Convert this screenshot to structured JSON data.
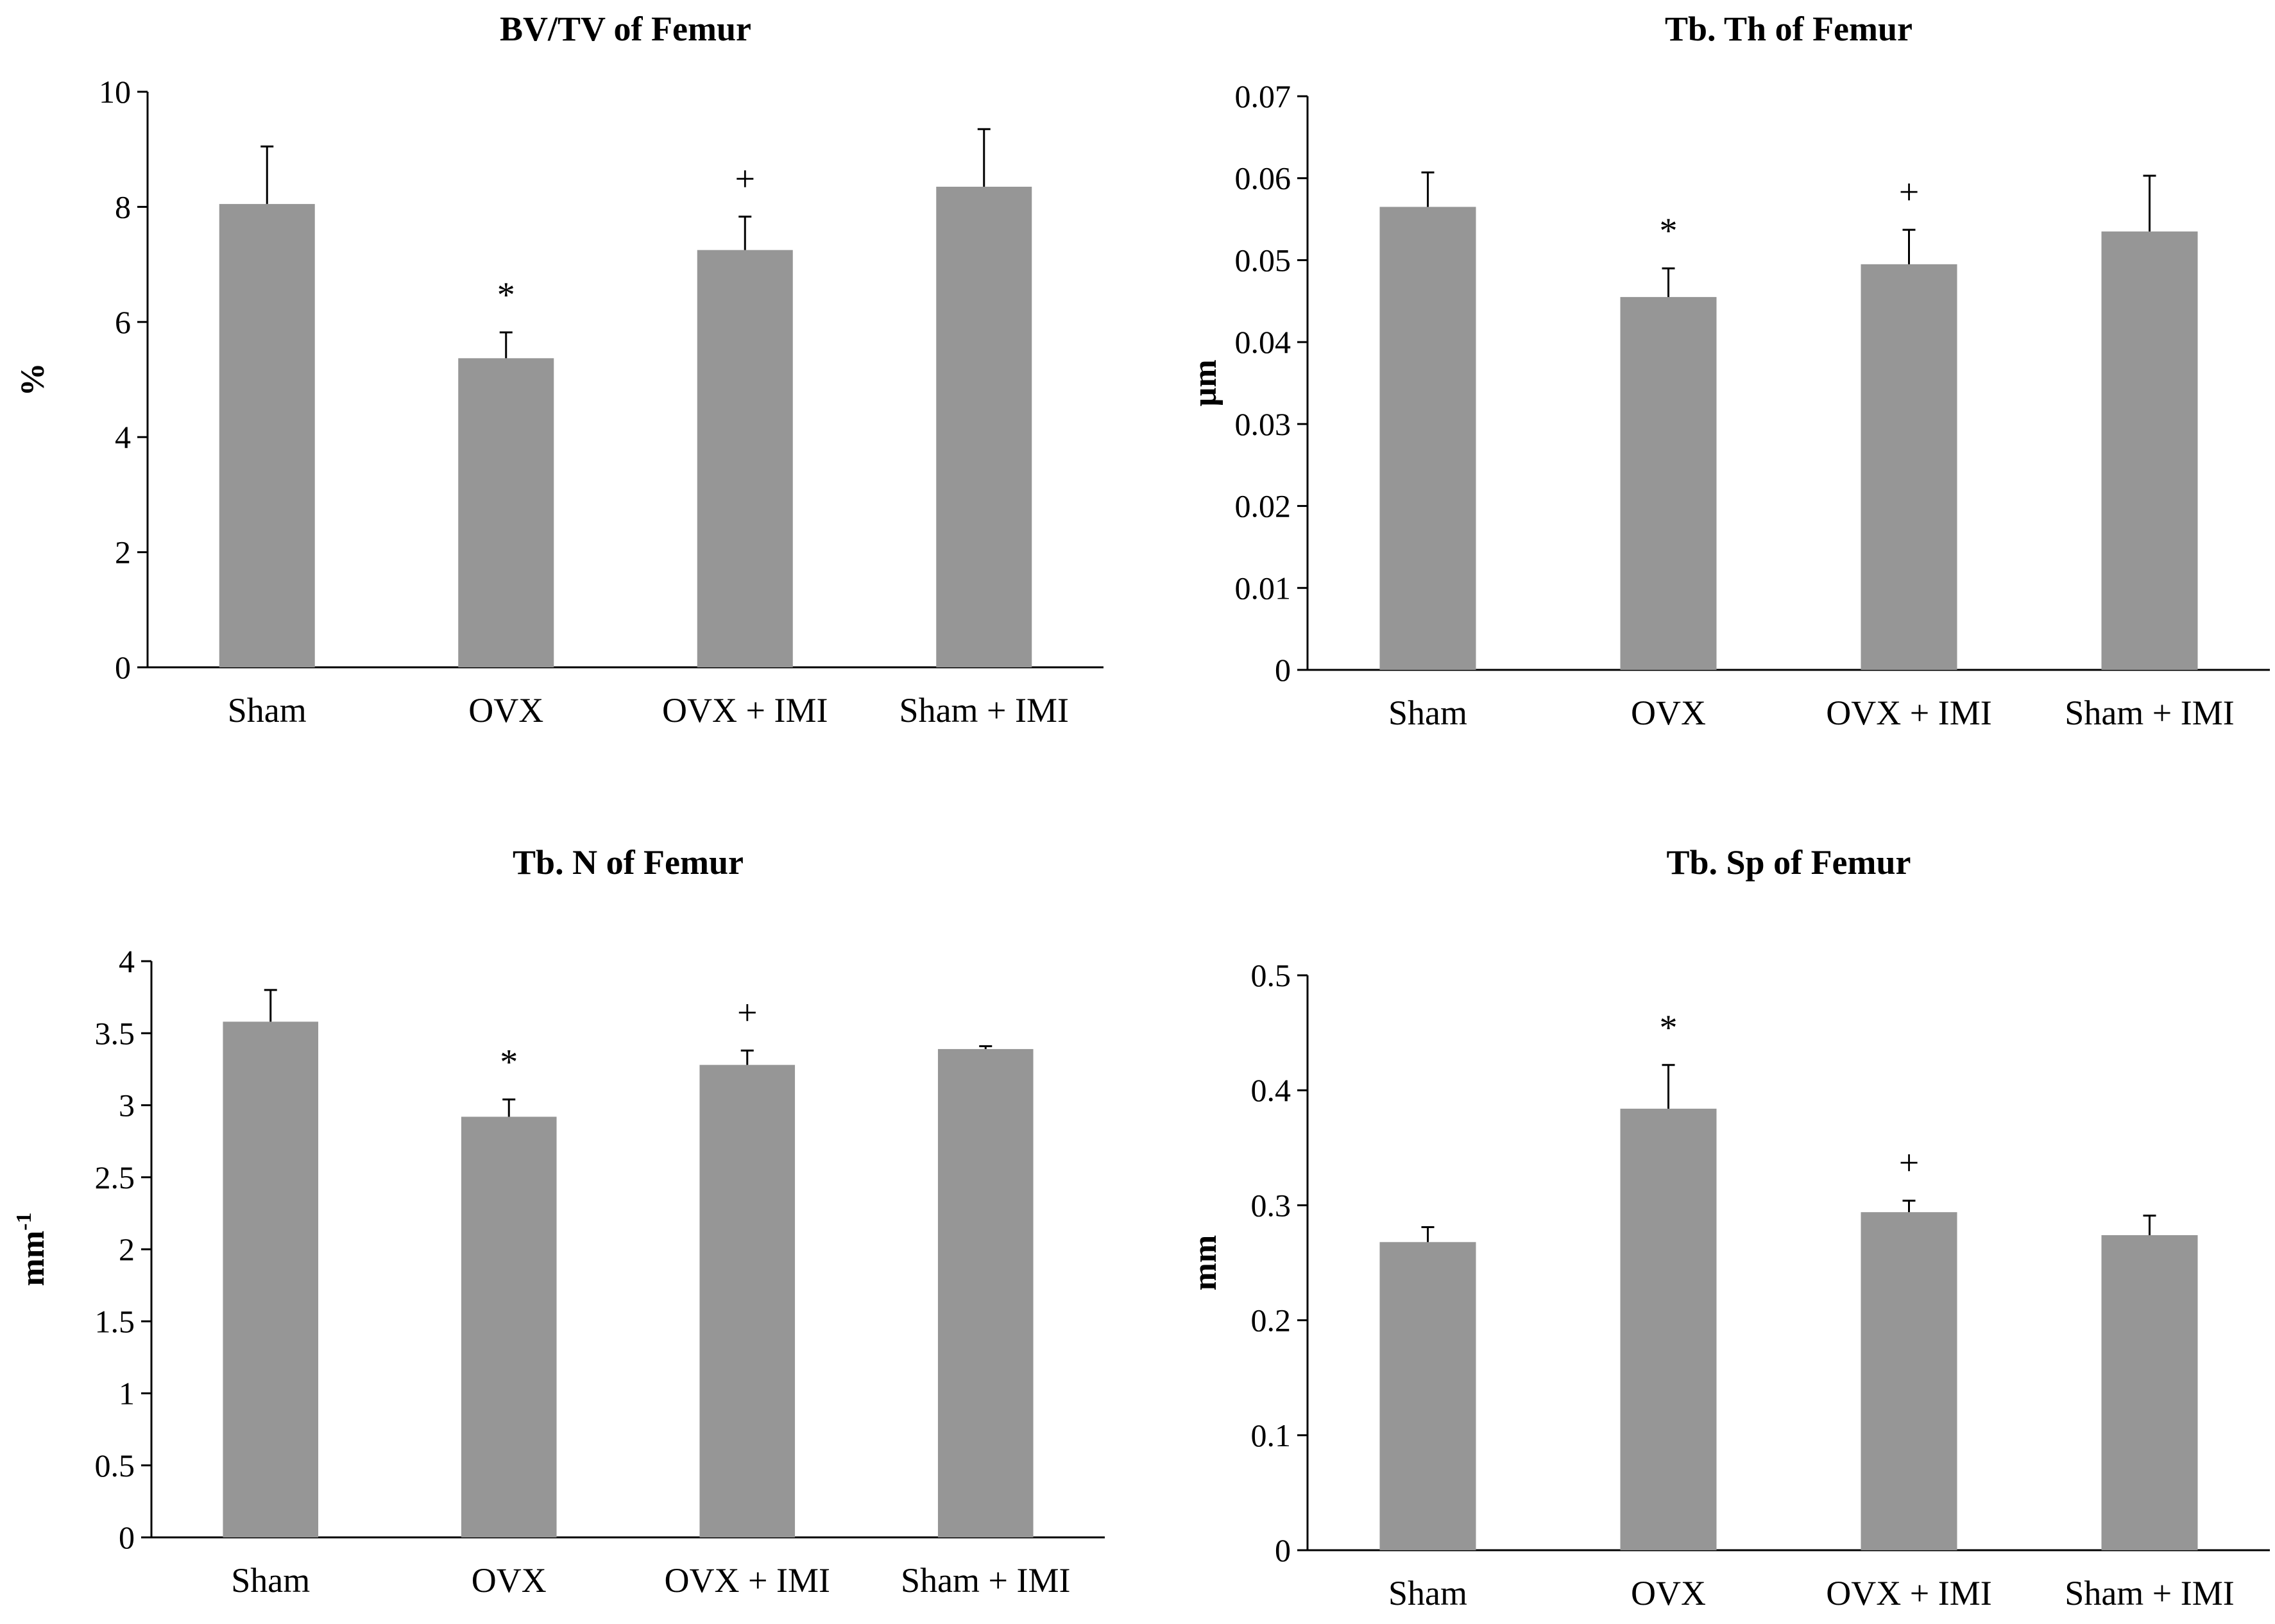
{
  "chart_data": [
    {
      "type": "bar",
      "title": "BV/TV of  Femur",
      "xlabel": "",
      "ylabel": "%",
      "ylabel_sup": "",
      "categories": [
        "Sham",
        "OVX",
        "OVX + IMI",
        "Sham + IMI"
      ],
      "values": [
        8.05,
        5.37,
        7.25,
        8.35
      ],
      "errors": [
        1.0,
        0.45,
        0.58,
        1.0
      ],
      "annotations": [
        "",
        "*",
        "+",
        ""
      ],
      "ylim": [
        0,
        10
      ],
      "yticks": [
        "0",
        "2",
        "4",
        "6",
        "8",
        "10"
      ],
      "bar_color": "#969696"
    },
    {
      "type": "bar",
      "title": "Tb. Th of  Femur",
      "xlabel": "",
      "ylabel": "µm",
      "ylabel_sup": "",
      "categories": [
        "Sham",
        "OVX",
        "OVX + IMI",
        "Sham + IMI"
      ],
      "values": [
        0.0565,
        0.0455,
        0.0495,
        0.0535
      ],
      "errors": [
        0.0042,
        0.0035,
        0.0042,
        0.0068
      ],
      "annotations": [
        "",
        "*",
        "+",
        ""
      ],
      "ylim": [
        0,
        0.07
      ],
      "yticks": [
        "0",
        "0.01",
        "0.02",
        "0.03",
        "0.04",
        "0.05",
        "0.06",
        "0.07"
      ],
      "bar_color": "#969696"
    },
    {
      "type": "bar",
      "title": "Tb. N of  Femur",
      "xlabel": "",
      "ylabel": "mm",
      "ylabel_sup": "-1",
      "categories": [
        "Sham",
        "OVX",
        "OVX + IMI",
        "Sham + IMI"
      ],
      "values": [
        3.58,
        2.92,
        3.28,
        3.39
      ],
      "errors": [
        0.22,
        0.12,
        0.1,
        0.02
      ],
      "annotations": [
        "",
        "*",
        "+",
        ""
      ],
      "ylim": [
        0,
        4
      ],
      "yticks": [
        "0",
        "0.5",
        "1",
        "1.5",
        "2",
        "2.5",
        "3",
        "3.5",
        "4"
      ],
      "bar_color": "#969696"
    },
    {
      "type": "bar",
      "title": "Tb. Sp of  Femur",
      "xlabel": "",
      "ylabel": "mm",
      "ylabel_sup": "",
      "categories": [
        "Sham",
        "OVX",
        "OVX + IMI",
        "Sham + IMI"
      ],
      "values": [
        0.268,
        0.384,
        0.294,
        0.274
      ],
      "errors": [
        0.013,
        0.038,
        0.01,
        0.017
      ],
      "annotations": [
        "",
        "*",
        "+",
        ""
      ],
      "ylim": [
        0,
        0.5
      ],
      "yticks": [
        "0",
        "0.1",
        "0.2",
        "0.3",
        "0.4",
        "0.5"
      ],
      "bar_color": "#969696"
    }
  ]
}
